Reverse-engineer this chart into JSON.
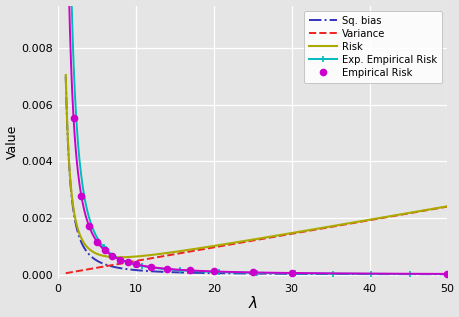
{
  "title": "",
  "xlabel": "λ",
  "ylabel": "Value",
  "xlim": [
    0,
    50
  ],
  "ylim": [
    -0.00015,
    0.0095
  ],
  "background_color": "#e5e5e5",
  "grid_color": "white",
  "sq_bias_color": "#3333bb",
  "variance_color": "#ee2222",
  "risk_color": "#aaaa00",
  "exp_emp_risk_color": "#00bbbb",
  "emp_risk_color": "#cc00cc",
  "legend_labels": [
    "Sq. bias",
    "Variance",
    "Risk",
    "Exp. Empirical Risk",
    "Empirical Risk"
  ],
  "yticks": [
    0.0,
    0.002,
    0.004,
    0.006,
    0.008
  ],
  "xticks": [
    0,
    10,
    20,
    30,
    40,
    50
  ],
  "A_bias": 0.007,
  "alpha_bias": 1.65,
  "B_var": 4.8e-05,
  "A_emp": 0.018,
  "alpha_emp": 1.7,
  "A_exp": 0.028,
  "alpha_exp": 1.9
}
